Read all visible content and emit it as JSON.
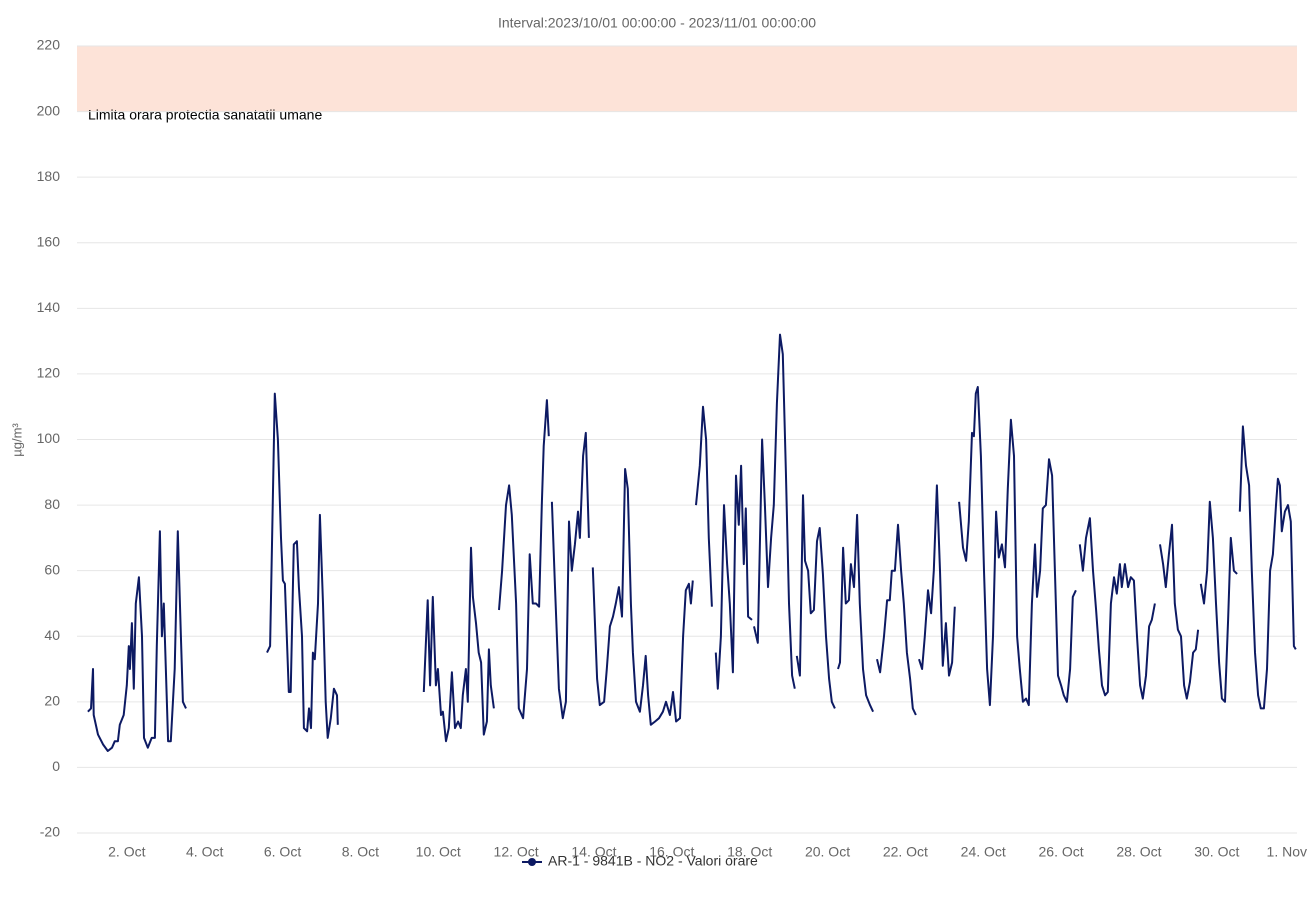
{
  "chart_data": {
    "type": "line",
    "subtitle": "Interval:2023/10/01 00:00:00 - 2023/11/01 00:00:00",
    "ylabel": "µg/m³",
    "plot_band": {
      "from": 200,
      "to": 220,
      "label": "Limita orara protectia sanatatii umane",
      "color": "#fde3d8"
    },
    "grid": true,
    "legend": "bottom",
    "xlim": [
      -0.28,
      31.06
    ],
    "ylim": [
      -20,
      220
    ],
    "yticks": [
      -20,
      0,
      20,
      40,
      60,
      80,
      100,
      120,
      140,
      160,
      180,
      200,
      220
    ],
    "xticks": [
      {
        "value": 1,
        "label": "2. Oct"
      },
      {
        "value": 3,
        "label": "4. Oct"
      },
      {
        "value": 5,
        "label": "6. Oct"
      },
      {
        "value": 7,
        "label": "8. Oct"
      },
      {
        "value": 9,
        "label": "10. Oct"
      },
      {
        "value": 11,
        "label": "12. Oct"
      },
      {
        "value": 13,
        "label": "14. Oct"
      },
      {
        "value": 15,
        "label": "16. Oct"
      },
      {
        "value": 17,
        "label": "18. Oct"
      },
      {
        "value": 19,
        "label": "20. Oct"
      },
      {
        "value": 21,
        "label": "22. Oct"
      },
      {
        "value": 23,
        "label": "24. Oct"
      },
      {
        "value": 25,
        "label": "26. Oct"
      },
      {
        "value": 27,
        "label": "28. Oct"
      },
      {
        "value": 29,
        "label": "30. Oct"
      },
      {
        "value": 31,
        "label": "1. Nov"
      }
    ],
    "x": [
      0,
      0.08,
      0.13,
      0.15,
      0.26,
      0.39,
      0.51,
      0.62,
      0.69,
      0.77,
      0.82,
      0.92,
      1.0,
      1.05,
      1.08,
      1.13,
      1.18,
      1.23,
      1.31,
      1.39,
      1.44,
      1.54,
      1.64,
      1.72,
      1.77,
      1.85,
      1.9,
      1.95,
      2.06,
      2.13,
      2.23,
      2.31,
      2.39,
      2.44,
      2.52,
      3.5,
      4.6,
      4.68,
      4.8,
      4.88,
      4.96,
      5.01,
      5.06,
      5.16,
      5.21,
      5.29,
      5.37,
      5.42,
      5.5,
      5.55,
      5.63,
      5.68,
      5.73,
      5.78,
      5.83,
      5.91,
      5.96,
      6.04,
      6.11,
      6.16,
      6.24,
      6.32,
      6.4,
      6.42,
      7.5,
      8.63,
      8.73,
      8.79,
      8.86,
      8.94,
      8.99,
      9.07,
      9.12,
      9.2,
      9.27,
      9.35,
      9.43,
      9.51,
      9.58,
      9.63,
      9.71,
      9.76,
      9.84,
      9.89,
      9.97,
      10.04,
      10.1,
      10.17,
      10.25,
      10.3,
      10.35,
      10.43,
      10.5,
      10.56,
      10.64,
      10.74,
      10.82,
      10.89,
      11.0,
      11.07,
      11.18,
      11.28,
      11.35,
      11.43,
      11.51,
      11.59,
      11.66,
      11.71,
      11.79,
      11.84,
      11.88,
      11.92,
      12.0,
      12.1,
      12.2,
      12.28,
      12.36,
      12.43,
      12.51,
      12.59,
      12.64,
      12.72,
      12.79,
      12.87,
      12.92,
      12.97,
      13.08,
      13.15,
      13.26,
      13.33,
      13.41,
      13.49,
      13.56,
      13.64,
      13.72,
      13.8,
      13.87,
      13.95,
      14.0,
      14.08,
      14.18,
      14.26,
      14.33,
      14.39,
      14.46,
      14.57,
      14.67,
      14.77,
      14.85,
      14.95,
      15.03,
      15.11,
      15.21,
      15.29,
      15.36,
      15.44,
      15.49,
      15.54,
      15.58,
      15.62,
      15.72,
      15.8,
      15.88,
      15.95,
      16.03,
      16.08,
      16.13,
      16.18,
      16.26,
      16.34,
      16.42,
      16.49,
      16.57,
      16.65,
      16.72,
      16.78,
      16.85,
      16.9,
      16.96,
      17.06,
      17.08,
      17.11,
      17.21,
      17.32,
      17.39,
      17.47,
      17.55,
      17.62,
      17.7,
      17.78,
      17.85,
      17.93,
      18.01,
      18.09,
      18.16,
      18.18,
      18.21,
      18.29,
      18.37,
      18.42,
      18.5,
      18.57,
      18.65,
      18.73,
      18.8,
      18.88,
      18.96,
      19.04,
      19.11,
      19.19,
      19.23,
      19.27,
      19.32,
      19.4,
      19.47,
      19.55,
      19.6,
      19.68,
      19.76,
      19.83,
      19.91,
      19.99,
      20.09,
      20.17,
      20.22,
      20.27,
      20.35,
      20.45,
      20.53,
      20.6,
      20.65,
      20.73,
      20.81,
      20.89,
      20.96,
      21.04,
      21.12,
      21.19,
      21.27,
      21.31,
      21.35,
      21.43,
      21.5,
      21.58,
      21.66,
      21.73,
      21.81,
      21.89,
      21.96,
      22.04,
      22.12,
      22.2,
      22.27,
      22.32,
      22.38,
      22.48,
      22.56,
      22.63,
      22.71,
      22.76,
      22.81,
      22.86,
      22.94,
      23.02,
      23.1,
      23.17,
      23.25,
      23.33,
      23.4,
      23.48,
      23.56,
      23.63,
      23.71,
      23.79,
      23.87,
      23.94,
      24.02,
      24.1,
      24.17,
      24.25,
      24.33,
      24.38,
      24.46,
      24.53,
      24.61,
      24.69,
      24.77,
      24.84,
      24.92,
      25.0,
      25.07,
      25.15,
      25.23,
      25.3,
      25.38,
      25.43,
      25.48,
      25.56,
      25.64,
      25.74,
      25.82,
      25.9,
      25.97,
      26.05,
      26.13,
      26.2,
      26.28,
      26.36,
      26.43,
      26.51,
      26.56,
      26.64,
      26.72,
      26.79,
      26.87,
      26.95,
      27.03,
      27.1,
      27.18,
      27.26,
      27.33,
      27.41,
      27.47,
      27.54,
      27.62,
      27.69,
      27.77,
      27.85,
      27.92,
      28.0,
      28.08,
      28.16,
      28.23,
      28.31,
      28.39,
      28.46,
      28.52,
      28.55,
      28.59,
      28.67,
      28.75,
      28.82,
      28.9,
      28.98,
      29.06,
      29.13,
      29.21,
      29.29,
      29.36,
      29.44,
      29.52,
      29.55,
      29.59,
      29.67,
      29.75,
      29.83,
      29.9,
      29.98,
      30.06,
      30.13,
      30.21,
      30.29,
      30.37,
      30.44,
      30.52,
      30.57,
      30.62,
      30.67,
      30.75,
      30.83,
      30.9,
      30.98,
      31.03
    ],
    "series": [
      {
        "name": "AR-1 - 9841B - NO2 - Valori orare",
        "color": "#0d1a63",
        "values": [
          17,
          18,
          30,
          16,
          10,
          7,
          5,
          6,
          8,
          8,
          13,
          16,
          25,
          37,
          30,
          44,
          24,
          50,
          58,
          40,
          9,
          6,
          9,
          9,
          37,
          72,
          40,
          50,
          8,
          8,
          30,
          72,
          40,
          20,
          18,
          null,
          35,
          37,
          114,
          100,
          70,
          57,
          56,
          23,
          23,
          68,
          69,
          55,
          40,
          12,
          11,
          18,
          12,
          35,
          33,
          50,
          77,
          50,
          20,
          9,
          15,
          24,
          22,
          13,
          null,
          23,
          51,
          25,
          52,
          25,
          30,
          16,
          17,
          8,
          12,
          29,
          12,
          14,
          12,
          22,
          30,
          20,
          67,
          52,
          44,
          35,
          32,
          10,
          14,
          36,
          25,
          18,
          null,
          48,
          60,
          80,
          86,
          77,
          50,
          18,
          15,
          30,
          65,
          50,
          50,
          49,
          80,
          98,
          112,
          101,
          null,
          81,
          55,
          24,
          15,
          20,
          75,
          60,
          68,
          78,
          70,
          95,
          102,
          70,
          null,
          61,
          27,
          19,
          20,
          30,
          43,
          46,
          50,
          55,
          46,
          91,
          85,
          50,
          35,
          20,
          17,
          25,
          34,
          22,
          13,
          14,
          15,
          17,
          20,
          16,
          23,
          14,
          15,
          40,
          54,
          56,
          50,
          57,
          null,
          80,
          92,
          110,
          100,
          70,
          49,
          null,
          35,
          24,
          40,
          80,
          62,
          50,
          29,
          89,
          74,
          92,
          62,
          79,
          46,
          45,
          null,
          43,
          38,
          100,
          80,
          55,
          70,
          80,
          111,
          132,
          126,
          90,
          50,
          28,
          24,
          null,
          34,
          28,
          83,
          63,
          60,
          47,
          48,
          69,
          73,
          59,
          40,
          27,
          20,
          18,
          null,
          30,
          32,
          67,
          50,
          51,
          62,
          55,
          77,
          50,
          30,
          22,
          19,
          17,
          null,
          33,
          29,
          40,
          51,
          51,
          60,
          60,
          74,
          60,
          50,
          35,
          27,
          18,
          16,
          null,
          33,
          30,
          40,
          54,
          47,
          60,
          86,
          60,
          31,
          44,
          28,
          32,
          49,
          null,
          81,
          67,
          63,
          75,
          102,
          101,
          114,
          116,
          95,
          60,
          30,
          19,
          40,
          78,
          64,
          68,
          61,
          85,
          106,
          95,
          40,
          30,
          20,
          21,
          19,
          50,
          68,
          52,
          60,
          79,
          80,
          94,
          89,
          60,
          28,
          25,
          22,
          20,
          30,
          52,
          54,
          null,
          68,
          60,
          70,
          76,
          60,
          48,
          36,
          25,
          22,
          23,
          50,
          58,
          53,
          62,
          55,
          62,
          55,
          58,
          57,
          40,
          25,
          21,
          28,
          43,
          45,
          50,
          null,
          68,
          62,
          55,
          65,
          74,
          50,
          42,
          40,
          25,
          21,
          26,
          35,
          36,
          42,
          null,
          56,
          50,
          60,
          81,
          70,
          50,
          32,
          21,
          20,
          45,
          70,
          60,
          59,
          null,
          78,
          104,
          92,
          86,
          60,
          35,
          22,
          18,
          18,
          30,
          60,
          65,
          80,
          88,
          86,
          72,
          78,
          80,
          75,
          37,
          36
        ]
      }
    ]
  }
}
